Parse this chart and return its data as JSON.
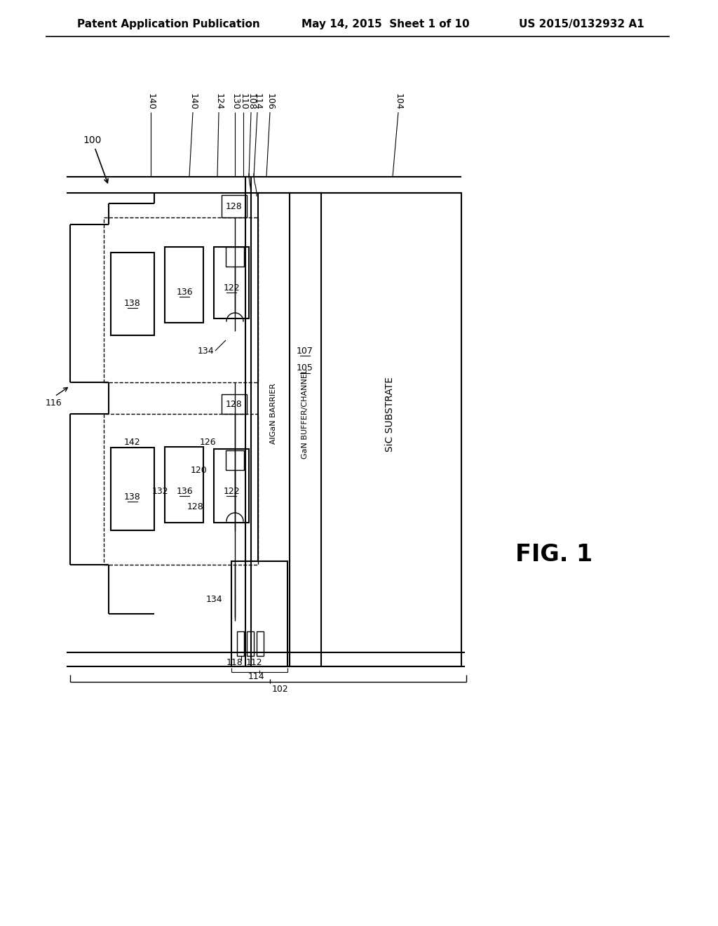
{
  "header_left": "Patent Application Publication",
  "header_mid": "May 14, 2015  Sheet 1 of 10",
  "header_right": "US 2015/0132932 A1",
  "fig_label": "FIG. 1",
  "bg_color": "#ffffff",
  "lc": "#000000",
  "text_AlGaN": "AlGaN BARRIER",
  "text_GaN": "GaN BUFFER/CHANNEL",
  "text_SiC": "SiC SUBSTRATE"
}
